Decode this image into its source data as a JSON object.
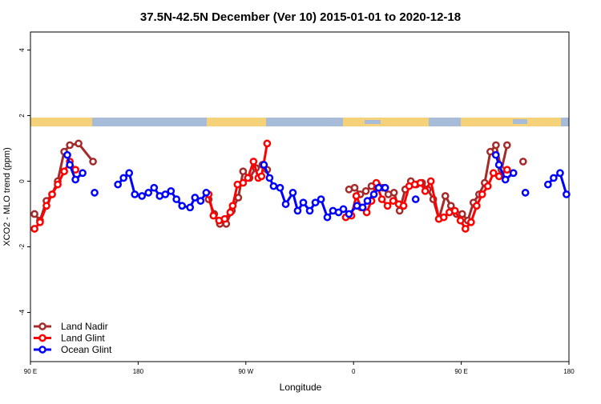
{
  "chart_data": {
    "type": "line",
    "title": "37.5N-42.5N December (Ver 10)   2015-01-01 to 2020-12-18",
    "xlabel": "Longitude",
    "ylabel": "XCO2 - MLO trend (ppm)",
    "xlim": [
      90,
      540
    ],
    "ylim": [
      -5.5,
      4.55
    ],
    "xticks": [
      {
        "value": 90,
        "label": "90 E"
      },
      {
        "value": 180,
        "label": "180"
      },
      {
        "value": 270,
        "label": "90 W"
      },
      {
        "value": 360,
        "label": "0"
      },
      {
        "value": 450,
        "label": "90 E"
      },
      {
        "value": 540,
        "label": "180"
      }
    ],
    "yticks": [
      -4,
      -2,
      0,
      2,
      4
    ],
    "legend": "bottom-left",
    "series": [
      {
        "name": "Land Nadir",
        "color": "#a52a2a",
        "x": [
          93.4,
          98,
          103.4,
          108.1,
          112.8,
          118.2,
          122.9,
          130.2,
          142.3,
          null,
          238.9,
          243.6,
          248.3,
          253.6,
          258.3,
          263.7,
          267.7,
          273.1,
          278.4,
          283.8,
          287.8,
          null,
          356.2,
          360.9,
          365.6,
          370.3,
          375,
          379.7,
          384.4,
          389.1,
          393.8,
          398.5,
          403.2,
          407.9,
          412.5,
          417.3,
          422,
          426.6,
          431.3,
          436.7,
          441.4,
          446.1,
          450.8,
          455.5,
          460.2,
          464.9,
          469.6,
          474.3,
          479,
          483.6,
          488.3,
          null,
          501.7
        ],
        "values": [
          -1.0,
          -1.2,
          -0.6,
          -0.4,
          0.0,
          0.9,
          1.1,
          1.15,
          0.6,
          null,
          -0.55,
          -1.0,
          -1.3,
          -1.3,
          -0.9,
          -0.5,
          0.3,
          0.1,
          0.4,
          0.5,
          0.35,
          null,
          -0.25,
          -0.2,
          -0.4,
          -0.3,
          -0.15,
          -0.1,
          -0.2,
          -0.4,
          -0.35,
          -0.9,
          -0.25,
          0.0,
          -0.1,
          -0.05,
          -0.25,
          -0.55,
          -1.15,
          -0.45,
          -0.75,
          -1.0,
          -1.0,
          -1.2,
          -0.65,
          -0.4,
          -0.05,
          0.9,
          1.1,
          0.35,
          1.1,
          null,
          0.6
        ]
      },
      {
        "name": "Land Glint",
        "color": "#ff0000",
        "x": [
          93.4,
          98,
          103.4,
          108.1,
          112.8,
          118.2,
          122.9,
          127.6,
          null,
          238.9,
          242.9,
          247.6,
          252.3,
          257,
          259,
          263,
          267.7,
          271.7,
          276.4,
          280.4,
          283.1,
          287.8,
          null,
          353.5,
          358.2,
          362.3,
          366.3,
          371,
          375,
          379,
          383.7,
          388.4,
          393.1,
          397.8,
          401.8,
          406.5,
          411.2,
          415.9,
          419.9,
          424.6,
          431.3,
          435.4,
          440.1,
          444.7,
          449.4,
          453.5,
          458.2,
          462.9,
          467.5,
          472.2,
          476.9,
          481.6,
          488.3
        ],
        "values": [
          -1.45,
          -1.25,
          -0.75,
          -0.4,
          -0.1,
          0.3,
          0.6,
          0.35,
          null,
          -0.4,
          -1.05,
          -1.2,
          -1.15,
          -0.95,
          -0.75,
          -0.1,
          -0.05,
          0.1,
          0.6,
          0.1,
          0.15,
          1.15,
          null,
          -1.1,
          -1.05,
          -0.45,
          -0.8,
          -0.95,
          -0.6,
          -0.05,
          -0.55,
          -0.75,
          -0.6,
          -0.7,
          -0.75,
          -0.15,
          -0.1,
          -0.05,
          -0.3,
          0.0,
          -1.15,
          -1.1,
          -0.95,
          -0.9,
          -1.2,
          -1.45,
          -1.25,
          -0.75,
          -0.4,
          -0.15,
          0.25,
          0.15,
          0.35
        ]
      },
      {
        "name": "Ocean Glint",
        "color": "#0000ff",
        "x": [
          120.8,
          122.9,
          127.6,
          133.6,
          null,
          143.6,
          null,
          163.1,
          167.8,
          172.5,
          177.2,
          183.2,
          188.6,
          193.3,
          198,
          202.7,
          207.4,
          212,
          216.7,
          223.4,
          227.5,
          232.2,
          236.9,
          null,
          285.1,
          289.8,
          293.2,
          298.6,
          303.3,
          309.3,
          313.3,
          318,
          323.4,
          328.1,
          332.8,
          338.1,
          342.8,
          347.5,
          351.5,
          356.2,
          362.9,
          367.6,
          371.6,
          377,
          381,
          386.4,
          null,
          411.9,
          null,
          478.9,
          481.5,
          486.9,
          493.6,
          null,
          503.6,
          null,
          522.5,
          527.2,
          532.6,
          537.9
        ],
        "values": [
          0.8,
          0.5,
          0.05,
          0.25,
          null,
          -0.35,
          null,
          -0.1,
          0.1,
          0.25,
          -0.4,
          -0.45,
          -0.35,
          -0.2,
          -0.45,
          -0.4,
          -0.3,
          -0.55,
          -0.75,
          -0.8,
          -0.5,
          -0.6,
          -0.35,
          null,
          0.5,
          0.1,
          -0.15,
          -0.2,
          -0.7,
          -0.35,
          -0.9,
          -0.65,
          -0.9,
          -0.65,
          -0.55,
          -1.1,
          -0.9,
          -0.95,
          -0.85,
          -1.0,
          -0.75,
          -0.8,
          -0.6,
          -0.4,
          -0.2,
          -0.2,
          null,
          -0.55,
          null,
          0.8,
          0.5,
          0.05,
          0.25,
          null,
          -0.35,
          null,
          -0.1,
          0.1,
          0.25,
          -0.4
        ]
      }
    ]
  }
}
